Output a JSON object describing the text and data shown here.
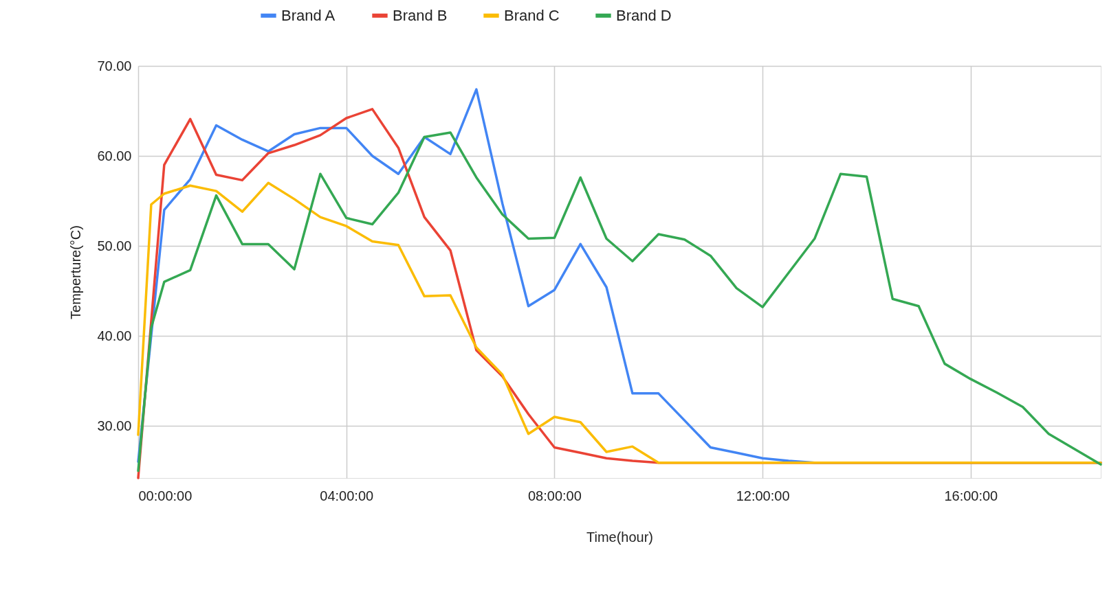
{
  "chart_data": {
    "type": "line",
    "xlabel": "Time(hour)",
    "ylabel": "Temperture(°C)",
    "xlim": [
      0,
      18.5
    ],
    "ylim": [
      24.2,
      70
    ],
    "xticks": [
      {
        "value": 0,
        "label": "00:00:00"
      },
      {
        "value": 4,
        "label": "04:00:00"
      },
      {
        "value": 8,
        "label": "08:00:00"
      },
      {
        "value": 12,
        "label": "12:00:00"
      },
      {
        "value": 16,
        "label": "16:00:00"
      }
    ],
    "yticks": [
      {
        "value": 30,
        "label": "30.00"
      },
      {
        "value": 40,
        "label": "40.00"
      },
      {
        "value": 50,
        "label": "50.00"
      },
      {
        "value": 60,
        "label": "60.00"
      },
      {
        "value": 70,
        "label": "70.00"
      }
    ],
    "grid": true,
    "legend": "top",
    "marker": "none",
    "line_style": "solid",
    "series": [
      {
        "name": "Brand A",
        "color": "#4285f4",
        "x": [
          0,
          0.5,
          1,
          1.5,
          2,
          2.5,
          3,
          3.5,
          4,
          4.5,
          5,
          5.5,
          6,
          6.5,
          7,
          7.5,
          8,
          8.5,
          9,
          9.5,
          10,
          10.5,
          11,
          11.5,
          12,
          12.5,
          13,
          18.5
        ],
        "values": [
          26.0,
          54.0,
          57.4,
          63.4,
          61.8,
          60.5,
          62.4,
          63.1,
          63.1,
          60.0,
          58.0,
          62.1,
          60.2,
          67.4,
          54.7,
          43.3,
          45.1,
          50.2,
          45.4,
          33.6,
          33.6,
          30.6,
          27.6,
          27.0,
          26.4,
          26.1,
          25.9,
          25.9
        ]
      },
      {
        "name": "Brand B",
        "color": "#ea4335",
        "x": [
          0,
          0.5,
          1,
          1.5,
          2,
          2.5,
          3,
          3.5,
          4,
          4.5,
          5,
          5.5,
          6,
          6.5,
          7,
          7.5,
          8,
          8.5,
          9,
          9.5,
          10,
          18.5
        ],
        "values": [
          24.2,
          59.0,
          64.1,
          57.9,
          57.3,
          60.3,
          61.2,
          62.3,
          64.2,
          65.2,
          60.9,
          53.2,
          49.5,
          38.4,
          35.5,
          31.3,
          27.6,
          27.0,
          26.4,
          26.1,
          25.9,
          25.9
        ]
      },
      {
        "name": "Brand C",
        "color": "#fbbc04",
        "x": [
          0,
          0.25,
          0.5,
          1,
          1.5,
          2,
          2.5,
          3,
          3.5,
          4,
          4.5,
          5,
          5.5,
          6,
          6.5,
          7,
          7.5,
          8,
          8.5,
          9,
          9.5,
          10,
          18.5
        ],
        "values": [
          29.0,
          54.6,
          55.8,
          56.7,
          56.1,
          53.8,
          57.0,
          55.2,
          53.2,
          52.2,
          50.5,
          50.1,
          44.4,
          44.5,
          38.7,
          35.7,
          29.1,
          31.0,
          30.4,
          27.1,
          27.7,
          25.9,
          25.9
        ]
      },
      {
        "name": "Brand D",
        "color": "#34a853",
        "x": [
          0,
          0.25,
          0.5,
          1,
          1.5,
          2,
          2.5,
          3,
          3.5,
          4,
          4.5,
          5,
          5.5,
          6,
          6.5,
          7,
          7.5,
          8,
          8.5,
          9,
          9.5,
          10,
          10.5,
          11,
          11.5,
          12,
          12.5,
          13,
          13.5,
          14,
          14.5,
          15,
          15.5,
          16,
          16.5,
          17,
          17.5,
          18,
          18.5
        ],
        "values": [
          25.0,
          40.9,
          46.0,
          47.3,
          55.6,
          50.2,
          50.2,
          47.4,
          58.0,
          53.1,
          52.4,
          55.9,
          62.1,
          62.6,
          57.6,
          53.5,
          50.8,
          50.9,
          57.6,
          50.8,
          48.3,
          51.3,
          50.7,
          48.9,
          45.3,
          43.2,
          47.0,
          50.8,
          58.0,
          57.7,
          44.1,
          43.3,
          36.9,
          35.2,
          33.7,
          32.1,
          29.1,
          27.4,
          25.7
        ]
      }
    ]
  }
}
